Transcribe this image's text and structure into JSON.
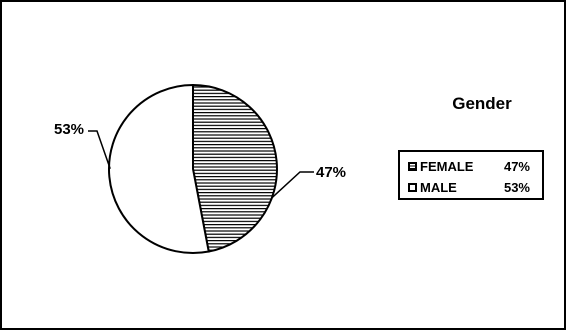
{
  "chart_data": {
    "type": "pie",
    "title": "Gender",
    "slices": [
      {
        "label": "FEMALE",
        "value": 47,
        "display": "47%",
        "legend_value": "47%",
        "pattern": "horizontal-stripes"
      },
      {
        "label": "MALE",
        "value": 53,
        "display": "53%",
        "legend_value": "53%",
        "pattern": "plain"
      }
    ],
    "legend_placement": "right",
    "colors": {
      "stroke": "#000000",
      "fill": "#ffffff",
      "stripe": "#000000"
    }
  }
}
